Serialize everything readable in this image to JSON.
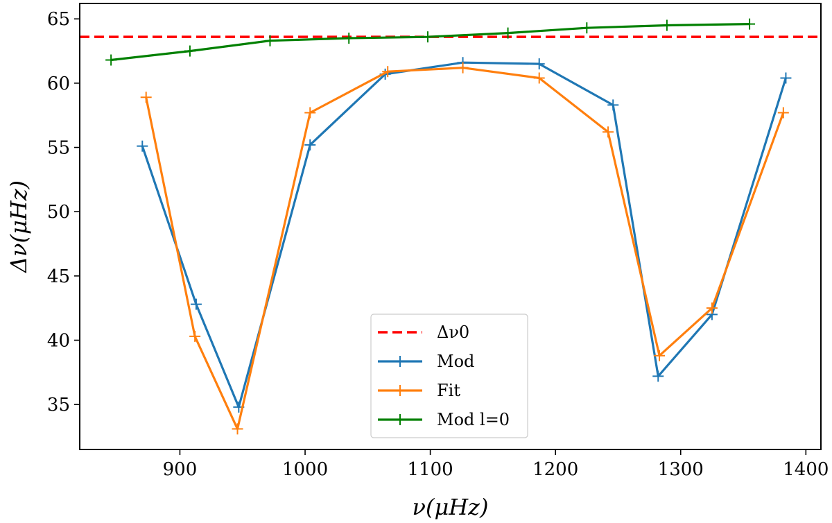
{
  "chart_data": {
    "type": "line",
    "xlabel": "ν(μHz)",
    "ylabel": "Δν(μHz)",
    "xlim": [
      820,
      1412
    ],
    "ylim": [
      31.5,
      66.2
    ],
    "xticks": [
      900,
      1000,
      1100,
      1200,
      1300,
      1400
    ],
    "yticks": [
      35,
      40,
      45,
      50,
      55,
      60,
      65
    ],
    "reference_line": {
      "name": "Δν0",
      "value": 63.6,
      "color": "#ff0000",
      "style": "dashed"
    },
    "series": [
      {
        "name": "Mod",
        "color": "#1f77b4",
        "points": [
          [
            870,
            55.1
          ],
          [
            913,
            42.8
          ],
          [
            947,
            34.8
          ],
          [
            1004,
            55.2
          ],
          [
            1064,
            60.7
          ],
          [
            1126,
            61.6
          ],
          [
            1187,
            61.5
          ],
          [
            1246,
            58.3
          ],
          [
            1282,
            37.2
          ],
          [
            1325,
            42.0
          ],
          [
            1384,
            60.4
          ]
        ]
      },
      {
        "name": "Fit",
        "color": "#ff7f0e",
        "points": [
          [
            873,
            58.9
          ],
          [
            912,
            40.3
          ],
          [
            946,
            33.1
          ],
          [
            1004,
            57.7
          ],
          [
            1066,
            60.9
          ],
          [
            1126,
            61.2
          ],
          [
            1187,
            60.4
          ],
          [
            1242,
            56.2
          ],
          [
            1283,
            38.8
          ],
          [
            1325,
            42.5
          ],
          [
            1382,
            57.7
          ]
        ]
      },
      {
        "name": "Mod l=0",
        "color": "#008000",
        "points": [
          [
            845,
            61.8
          ],
          [
            908,
            62.5
          ],
          [
            972,
            63.3
          ],
          [
            1035,
            63.5
          ],
          [
            1098,
            63.6
          ],
          [
            1162,
            63.9
          ],
          [
            1225,
            64.3
          ],
          [
            1289,
            64.5
          ],
          [
            1355,
            64.6
          ]
        ]
      }
    ],
    "legend": {
      "position": "bottom-center",
      "entries": [
        "Δν0",
        "Mod",
        "Fit",
        "Mod l=0"
      ]
    }
  }
}
